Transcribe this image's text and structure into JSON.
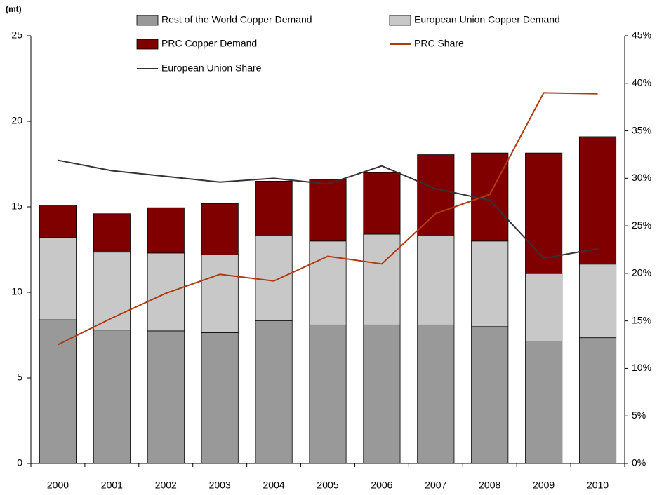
{
  "chart_data": {
    "type": "stacked_bar_line",
    "y_label": "(mt)",
    "categories": [
      "2000",
      "2001",
      "2002",
      "2003",
      "2004",
      "2005",
      "2006",
      "2007",
      "2008",
      "2009",
      "2010"
    ],
    "series": [
      {
        "name": "Rest of the World Copper Demand",
        "color": "#999999",
        "kind": "bar",
        "values": [
          8.4,
          7.8,
          7.75,
          7.65,
          8.35,
          8.1,
          8.1,
          8.1,
          8.0,
          7.15,
          7.35
        ]
      },
      {
        "name": "European Union Copper Demand",
        "color": "#c8c8c8",
        "kind": "bar",
        "values": [
          4.8,
          4.55,
          4.55,
          4.55,
          4.95,
          4.9,
          5.3,
          5.2,
          5.0,
          3.95,
          4.3
        ]
      },
      {
        "name": "PRC Copper Demand",
        "color": "#800000",
        "kind": "bar",
        "values": [
          1.9,
          2.25,
          2.65,
          3.0,
          3.2,
          3.6,
          3.6,
          4.75,
          5.15,
          7.05,
          7.45
        ]
      },
      {
        "name": "PRC Share",
        "color": "#b03a10",
        "kind": "line",
        "axis": "y2",
        "values": [
          12.5,
          15.3,
          17.9,
          19.9,
          19.2,
          21.8,
          21.0,
          26.3,
          28.3,
          39.0,
          38.9
        ]
      },
      {
        "name": "European Union Share",
        "color": "#333333",
        "kind": "line",
        "axis": "y2",
        "values": [
          31.9,
          30.8,
          30.2,
          29.6,
          30.0,
          29.4,
          31.3,
          28.9,
          27.7,
          21.6,
          22.6
        ]
      }
    ],
    "ylim": [
      0,
      25
    ],
    "yticks": [
      0,
      5,
      10,
      15,
      20,
      25
    ],
    "y2lim": [
      0,
      45
    ],
    "y2ticks": [
      {
        "value": 0,
        "label": "0%"
      },
      {
        "value": 5,
        "label": "5%"
      },
      {
        "value": 10,
        "label": "10%"
      },
      {
        "value": 15,
        "label": "15%"
      },
      {
        "value": 20,
        "label": "20%"
      },
      {
        "value": 25,
        "label": "25%"
      },
      {
        "value": 30,
        "label": "30%"
      },
      {
        "value": 35,
        "label": "35%"
      },
      {
        "value": 40,
        "label": "40%"
      },
      {
        "value": 45,
        "label": "45%"
      }
    ],
    "grid": false,
    "legend": "top"
  }
}
